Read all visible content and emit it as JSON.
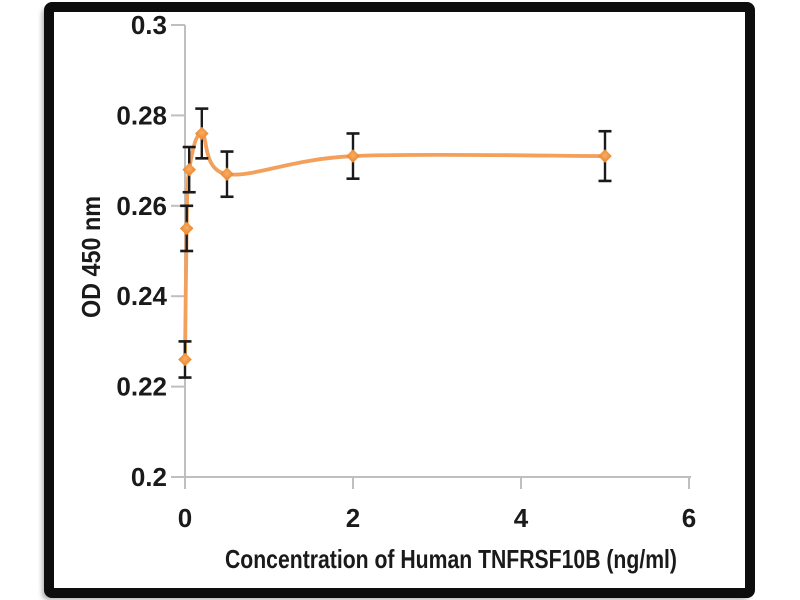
{
  "chart_data": {
    "type": "line",
    "title": "",
    "xlabel": "Concentration of Human TNFRSF10B (ng/ml)",
    "ylabel": "OD 450 nm",
    "x": [
      0,
      0.02,
      0.05,
      0.2,
      0.5,
      2,
      5
    ],
    "series": [
      {
        "name": "OD 450 nm",
        "values": [
          0.226,
          0.255,
          0.268,
          0.276,
          0.267,
          0.271,
          0.271
        ],
        "yerr": [
          0.004,
          0.005,
          0.005,
          0.0055,
          0.005,
          0.005,
          0.0055
        ]
      }
    ],
    "xlim": [
      0,
      6
    ],
    "ylim": [
      0.2,
      0.3
    ],
    "x_ticks": [
      0,
      2,
      4,
      6
    ],
    "x_tick_labels": [
      "0",
      "2",
      "4",
      "6"
    ],
    "y_ticks": [
      0.2,
      0.22,
      0.24,
      0.26,
      0.28,
      0.3
    ],
    "y_tick_labels": [
      "0.2",
      "0.22",
      "0.24",
      "0.26",
      "0.28",
      "0.3"
    ],
    "grid": false,
    "legend_position": "none",
    "marker": "diamond",
    "smooth_line": true,
    "error_bars": true,
    "colors": {
      "line": "#F2A05C",
      "marker": "#E87C20",
      "marker_center": "#F8AE66",
      "error_bar": "#1a1a1a",
      "axis": "#BFBFBF",
      "text": "#1a1a1a",
      "frame": "#0d0d0d",
      "background": "#ffffff"
    }
  }
}
